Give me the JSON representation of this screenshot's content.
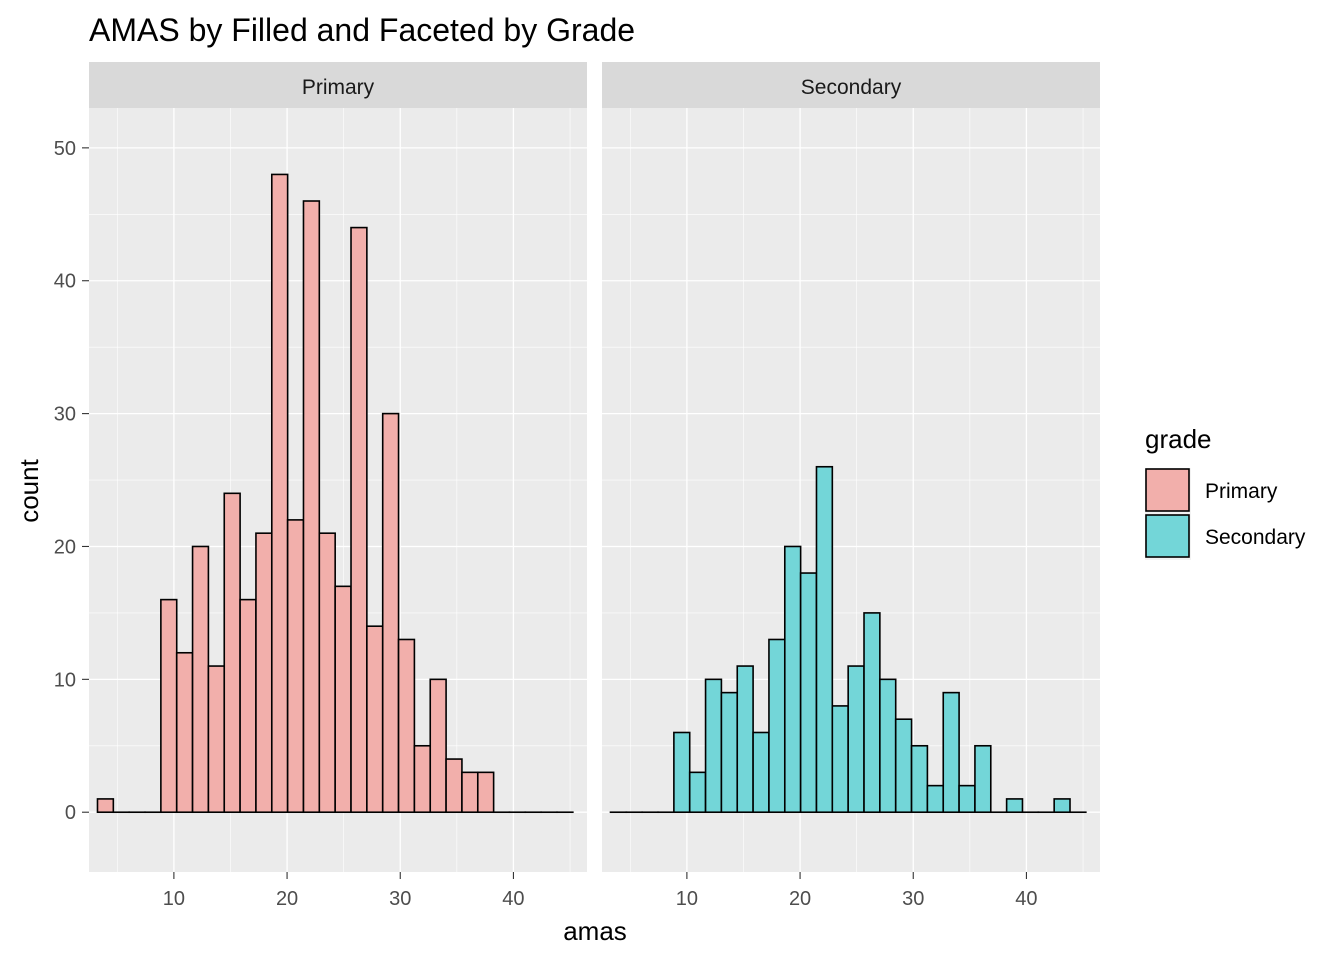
{
  "chart_data": {
    "type": "bar",
    "title": "AMAS by Filled and Faceted by Grade",
    "xlabel": "amas",
    "ylabel": "count",
    "xlim": [
      2.5,
      46.5
    ],
    "ylim": [
      -4.5,
      53
    ],
    "x_ticks": [
      10,
      20,
      30,
      40
    ],
    "y_ticks": [
      0,
      10,
      20,
      30,
      40,
      50
    ],
    "bin_width": 1.4,
    "bin_centers": [
      3.95,
      5.35,
      6.75,
      8.15,
      9.55,
      10.95,
      12.35,
      13.75,
      15.15,
      16.55,
      17.95,
      19.35,
      20.75,
      22.15,
      23.55,
      24.95,
      26.35,
      27.75,
      29.15,
      30.55,
      31.95,
      33.35,
      34.75,
      36.15,
      37.55,
      38.95,
      40.35,
      41.75,
      43.15,
      44.55
    ],
    "grid": true,
    "legend_position": "right",
    "legend": {
      "title": "grade",
      "entries": [
        "Primary",
        "Secondary"
      ]
    },
    "colors": {
      "Primary": "#F2AFAB",
      "Secondary": "#73D6D8",
      "panel_bg": "#EBEBEB",
      "strip_bg": "#D9D9D9",
      "bar_outline": "#000000"
    },
    "series": [
      {
        "name": "Primary",
        "values": [
          1,
          0,
          0,
          0,
          16,
          12,
          20,
          11,
          24,
          16,
          21,
          48,
          22,
          46,
          21,
          17,
          44,
          14,
          30,
          13,
          5,
          10,
          4,
          3,
          3,
          0,
          0,
          0,
          0,
          0
        ]
      },
      {
        "name": "Secondary",
        "values": [
          0,
          0,
          0,
          0,
          6,
          3,
          10,
          9,
          11,
          6,
          13,
          20,
          18,
          26,
          8,
          11,
          15,
          10,
          7,
          5,
          2,
          9,
          2,
          5,
          0,
          1,
          0,
          0,
          1,
          0
        ]
      }
    ]
  }
}
